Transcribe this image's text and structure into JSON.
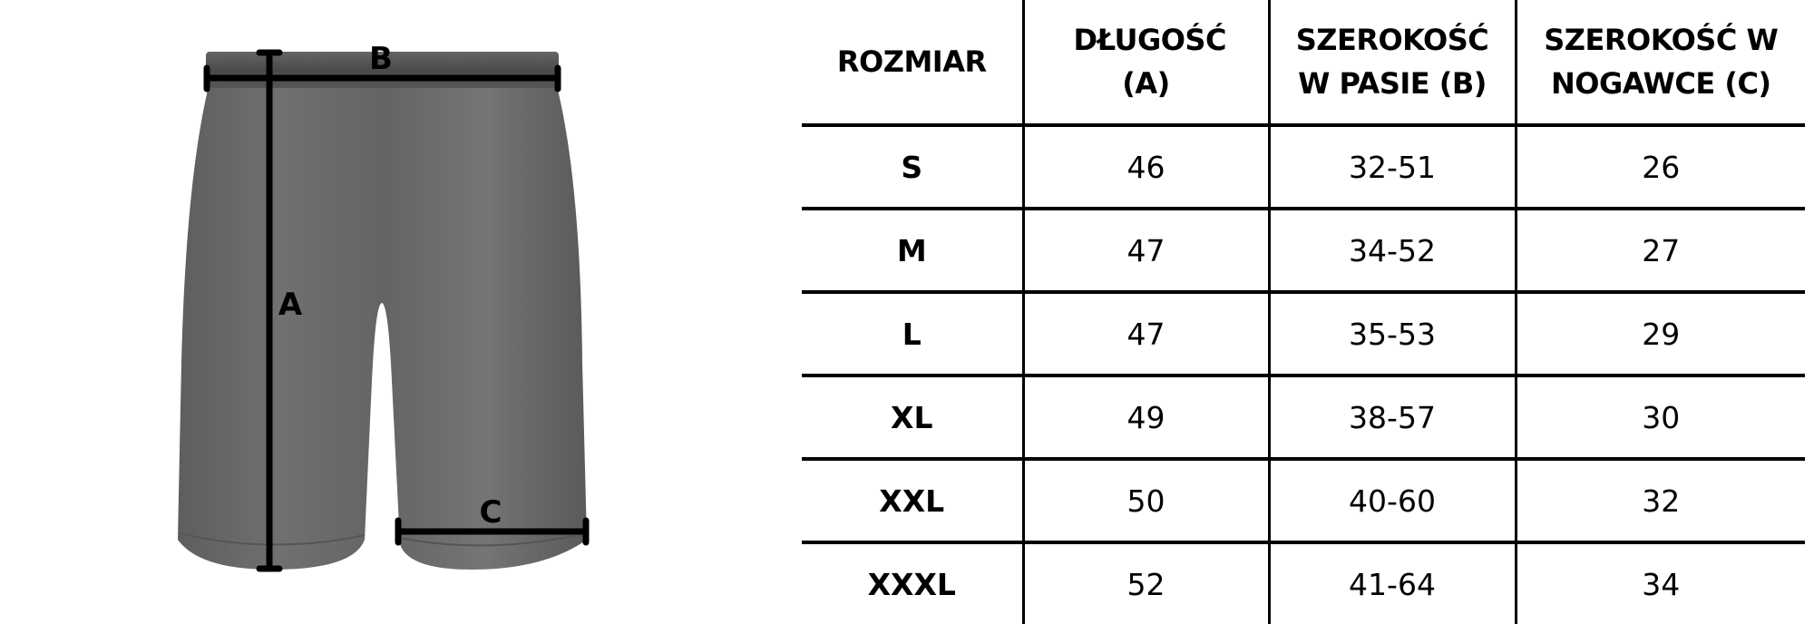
{
  "diagram": {
    "labels": {
      "length": "A",
      "waist": "B",
      "leg": "C"
    },
    "garment_color": "#6b6b6b"
  },
  "table": {
    "headers": [
      "ROZMIAR",
      "DŁUGOŚĆ (A)",
      "SZEROKOŚĆ W PASIE (B)",
      "SZEROKOŚĆ W NOGAWCE (C)"
    ],
    "rows": [
      {
        "size": "S",
        "length": "46",
        "waist": "32-51",
        "leg": "26"
      },
      {
        "size": "M",
        "length": "47",
        "waist": "34-52",
        "leg": "27"
      },
      {
        "size": "L",
        "length": "47",
        "waist": "35-53",
        "leg": "29"
      },
      {
        "size": "XL",
        "length": "49",
        "waist": "38-57",
        "leg": "30"
      },
      {
        "size": "XXL",
        "length": "50",
        "waist": "40-60",
        "leg": "32"
      },
      {
        "size": "XXXL",
        "length": "52",
        "waist": "41-64",
        "leg": "34"
      }
    ]
  }
}
